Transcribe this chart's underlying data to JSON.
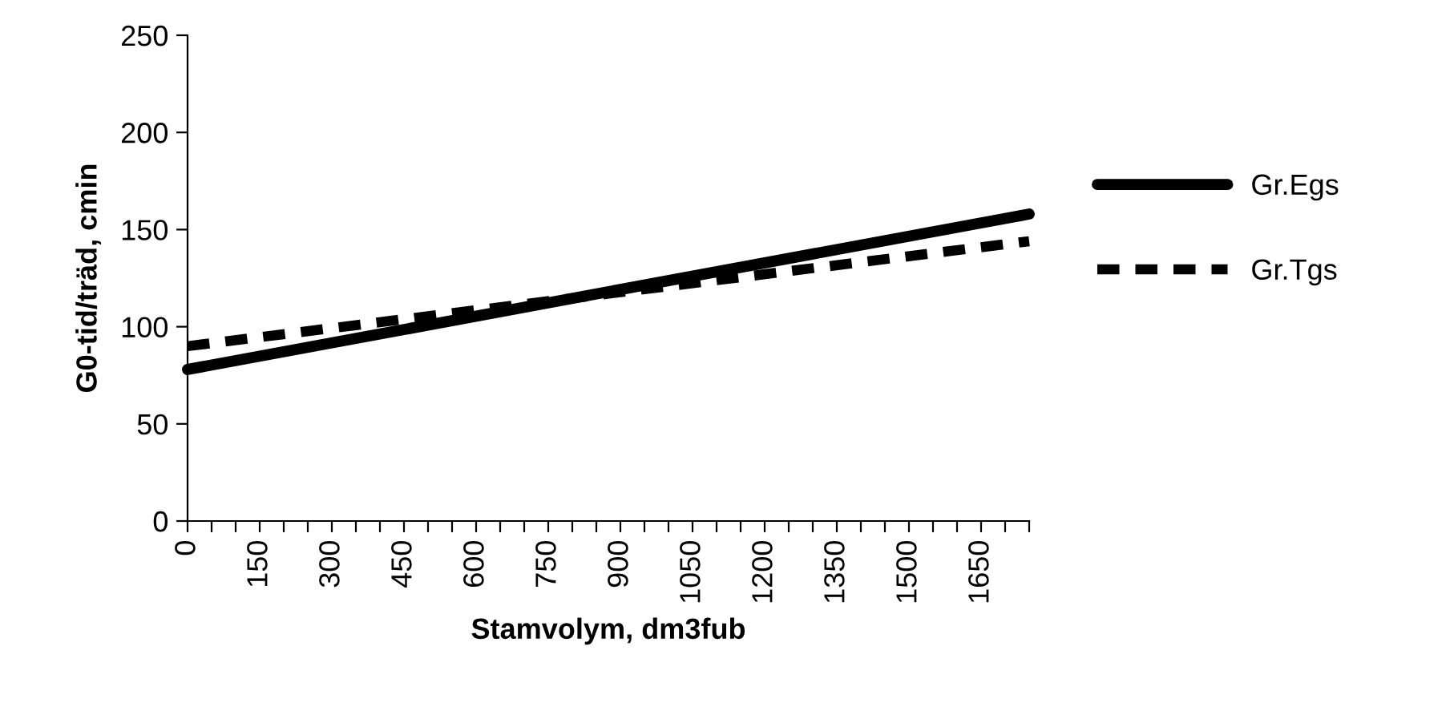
{
  "chart_data": {
    "type": "line",
    "xlabel": "Stamvolym, dm3fub",
    "ylabel": "G0-tid/träd, cmin",
    "x": [
      0,
      1750
    ],
    "xlim": [
      0,
      1750
    ],
    "xticks": [
      {
        "value": 0,
        "label": "0"
      },
      {
        "value": 50,
        "label": null
      },
      {
        "value": 100,
        "label": null
      },
      {
        "value": 150,
        "label": "150"
      },
      {
        "value": 200,
        "label": null
      },
      {
        "value": 250,
        "label": null
      },
      {
        "value": 300,
        "label": "300"
      },
      {
        "value": 350,
        "label": null
      },
      {
        "value": 400,
        "label": null
      },
      {
        "value": 450,
        "label": "450"
      },
      {
        "value": 500,
        "label": null
      },
      {
        "value": 550,
        "label": null
      },
      {
        "value": 600,
        "label": "600"
      },
      {
        "value": 650,
        "label": null
      },
      {
        "value": 700,
        "label": null
      },
      {
        "value": 750,
        "label": "750"
      },
      {
        "value": 800,
        "label": null
      },
      {
        "value": 850,
        "label": null
      },
      {
        "value": 900,
        "label": "900"
      },
      {
        "value": 950,
        "label": null
      },
      {
        "value": 1000,
        "label": null
      },
      {
        "value": 1050,
        "label": "1050"
      },
      {
        "value": 1100,
        "label": null
      },
      {
        "value": 1150,
        "label": null
      },
      {
        "value": 1200,
        "label": "1200"
      },
      {
        "value": 1250,
        "label": null
      },
      {
        "value": 1300,
        "label": null
      },
      {
        "value": 1350,
        "label": "1350"
      },
      {
        "value": 1400,
        "label": null
      },
      {
        "value": 1450,
        "label": null
      },
      {
        "value": 1500,
        "label": "1500"
      },
      {
        "value": 1550,
        "label": null
      },
      {
        "value": 1600,
        "label": null
      },
      {
        "value": 1650,
        "label": "1650"
      },
      {
        "value": 1700,
        "label": null
      },
      {
        "value": 1750,
        "label": null
      }
    ],
    "ylim": [
      0,
      250
    ],
    "yticks": [
      0,
      50,
      100,
      150,
      200,
      250
    ],
    "grid": false,
    "legend": "right",
    "marker": "none",
    "series": [
      {
        "name": "Gr.Egs",
        "color": "#000000",
        "line_style": "solid",
        "values": [
          78,
          158
        ]
      },
      {
        "name": "Gr.Tgs",
        "color": "#000000",
        "line_style": "dashed",
        "values": [
          90,
          144
        ]
      }
    ]
  }
}
